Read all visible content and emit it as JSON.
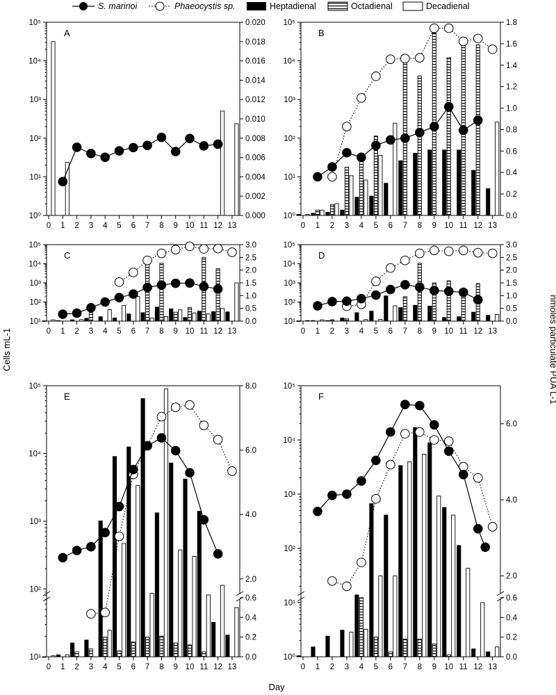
{
  "legend": {
    "s_marinoi": "S. marinoi",
    "phaeocystis": "Phaeocystis sp.",
    "heptadienal": "Heptadienal",
    "octadienal": "Octadienal",
    "decadienal": "Decadienal"
  },
  "axis_titles": {
    "x": "Day",
    "y_left": "Cells mL-1",
    "y_right": "nmoles particulate PUA L-1"
  },
  "colors": {
    "ink": "#000000",
    "paper": "#ffffff"
  },
  "chart_data": [
    {
      "panel": "A",
      "type": "bar+line",
      "ylim_left": [
        1,
        100000
      ],
      "y_scale_left": "log",
      "ylim_right": [
        0,
        0.02
      ],
      "right_ticks": [
        "0.000",
        "0.002",
        "0.004",
        "0.006",
        "0.008",
        "0.010",
        "0.012",
        "0.014",
        "0.016",
        "0.018",
        "0.020"
      ],
      "left_ticks": [
        "10^0",
        "10^1",
        "10^2",
        "10^3",
        "10^4",
        "10^5"
      ],
      "x_ticks": [
        0,
        1,
        2,
        3,
        4,
        5,
        6,
        7,
        8,
        9,
        10,
        11,
        12,
        13
      ],
      "s_marinoi": [
        [
          1,
          7.5
        ],
        [
          2,
          58
        ],
        [
          3,
          40
        ],
        [
          4,
          32
        ],
        [
          5,
          47
        ],
        [
          6,
          57
        ],
        [
          7,
          65
        ],
        [
          8,
          105
        ],
        [
          9,
          45
        ],
        [
          10,
          98
        ],
        [
          11,
          63
        ],
        [
          12,
          70
        ]
      ],
      "phaeocystis": [],
      "heptadienal": [],
      "octadienal": [],
      "decadienal": [
        [
          0,
          0.018
        ],
        [
          1,
          0.0055
        ],
        [
          12,
          0.0108
        ],
        [
          13,
          0.0095
        ]
      ]
    },
    {
      "panel": "B",
      "type": "bar+line",
      "ylim_left": [
        1,
        100000
      ],
      "y_scale_left": "log",
      "ylim_right": [
        0,
        1.8
      ],
      "right_ticks": [
        "0.0",
        "0.2",
        "0.4",
        "0.6",
        "0.8",
        "1.0",
        "1.2",
        "1.4",
        "1.6",
        "1.8"
      ],
      "left_ticks": [
        "10^0",
        "10^1",
        "10^2",
        "10^3",
        "10^4",
        "10^5"
      ],
      "x_ticks": [
        0,
        1,
        2,
        3,
        4,
        5,
        6,
        7,
        8,
        9,
        10,
        11,
        12,
        13
      ],
      "s_marinoi": [
        [
          1,
          10
        ],
        [
          2,
          18
        ],
        [
          3,
          42
        ],
        [
          4,
          32
        ],
        [
          5,
          65
        ],
        [
          6,
          90
        ],
        [
          7,
          100
        ],
        [
          8,
          140
        ],
        [
          9,
          200
        ],
        [
          10,
          650
        ],
        [
          11,
          160
        ],
        [
          12,
          290
        ]
      ],
      "phaeocystis": [
        [
          2,
          10
        ],
        [
          3,
          200
        ],
        [
          4,
          1100
        ],
        [
          5,
          4000
        ],
        [
          6,
          11000
        ],
        [
          7,
          11500
        ],
        [
          8,
          12000
        ],
        [
          9,
          70000
        ],
        [
          10,
          70000
        ],
        [
          11,
          32000
        ],
        [
          12,
          38000
        ],
        [
          13,
          20000
        ]
      ],
      "heptadienal": [
        [
          0,
          0.01
        ],
        [
          1,
          0.02
        ],
        [
          2,
          0.03
        ],
        [
          3,
          0.05
        ],
        [
          4,
          0.17
        ],
        [
          5,
          0.18
        ],
        [
          6,
          0.3
        ],
        [
          7,
          0.51
        ],
        [
          8,
          0.58
        ],
        [
          9,
          0.61
        ],
        [
          10,
          0.61
        ],
        [
          11,
          0.61
        ],
        [
          12,
          0.42
        ],
        [
          13,
          0.25
        ]
      ],
      "octadienal": [
        [
          1,
          0.05
        ],
        [
          2,
          0.1
        ],
        [
          3,
          0.45
        ],
        [
          4,
          0.55
        ],
        [
          5,
          0.74
        ],
        [
          7,
          1.5
        ],
        [
          8,
          1.3
        ],
        [
          9,
          1.7
        ],
        [
          10,
          1.47
        ],
        [
          11,
          1.62
        ],
        [
          12,
          1.59
        ]
      ],
      "decadienal": [
        [
          0,
          0.01
        ],
        [
          1,
          0.05
        ],
        [
          2,
          0.11
        ],
        [
          3,
          0.37
        ],
        [
          4,
          0.33
        ],
        [
          5,
          0.56
        ],
        [
          6,
          0.86
        ],
        [
          13,
          0.87
        ]
      ]
    },
    {
      "panel": "C",
      "type": "bar+line",
      "ylim_left": [
        10,
        100000
      ],
      "y_scale_left": "log",
      "ylim_right": [
        0,
        3.0
      ],
      "right_ticks": [
        "0.0",
        "0.5",
        "1.0",
        "1.5",
        "2.0",
        "2.5",
        "3.0"
      ],
      "left_ticks": [
        "10^1",
        "10^2",
        "10^3",
        "10^4",
        "10^5"
      ],
      "x_ticks": [
        0,
        1,
        2,
        3,
        4,
        5,
        6,
        7,
        8,
        9,
        10,
        11,
        12,
        13
      ],
      "s_marinoi": [
        [
          1,
          23
        ],
        [
          2,
          26
        ],
        [
          3,
          50
        ],
        [
          4,
          100
        ],
        [
          5,
          170
        ],
        [
          6,
          260
        ],
        [
          7,
          580
        ],
        [
          8,
          770
        ],
        [
          9,
          950
        ],
        [
          10,
          980
        ],
        [
          11,
          650
        ],
        [
          12,
          480
        ]
      ],
      "phaeocystis": [
        [
          5,
          1100
        ],
        [
          6,
          3500
        ],
        [
          7,
          15000
        ],
        [
          8,
          35000
        ],
        [
          9,
          55000
        ],
        [
          10,
          82000
        ],
        [
          11,
          60000
        ],
        [
          12,
          62000
        ],
        [
          13,
          40000
        ]
      ],
      "heptadienal": [
        [
          0,
          0.01
        ],
        [
          1,
          0.02
        ],
        [
          2,
          0.05
        ],
        [
          3,
          0.11
        ],
        [
          4,
          0.17
        ],
        [
          5,
          0.12
        ],
        [
          6,
          0.28
        ],
        [
          7,
          0.33
        ],
        [
          8,
          0.55
        ],
        [
          9,
          0.48
        ],
        [
          10,
          0.14
        ],
        [
          11,
          0.39
        ],
        [
          12,
          0.37
        ],
        [
          13,
          0.36
        ]
      ],
      "octadienal": [
        [
          3,
          0.33
        ],
        [
          7,
          2.3
        ],
        [
          8,
          2.27
        ],
        [
          9,
          0.35
        ],
        [
          10,
          0.53
        ],
        [
          11,
          2.5
        ],
        [
          12,
          2.06
        ]
      ],
      "decadienal": [
        [
          0,
          0.05
        ],
        [
          2,
          0.06
        ],
        [
          4,
          0.45
        ],
        [
          5,
          0.61
        ],
        [
          6,
          0.97
        ],
        [
          7,
          0.12
        ],
        [
          8,
          0.18
        ],
        [
          9,
          0.44
        ],
        [
          10,
          0.32
        ],
        [
          11,
          0.28
        ],
        [
          12,
          0.5
        ],
        [
          13,
          1.5
        ]
      ]
    },
    {
      "panel": "D",
      "type": "bar+line",
      "ylim_left": [
        10,
        100000
      ],
      "y_scale_left": "log",
      "ylim_right": [
        0,
        3.0
      ],
      "right_ticks": [
        "0.0",
        "0.5",
        "1.0",
        "1.5",
        "2.0",
        "2.5",
        "3.0"
      ],
      "left_ticks": [
        "10^1",
        "10^2",
        "10^3",
        "10^4",
        "10^5"
      ],
      "x_ticks": [
        0,
        1,
        2,
        3,
        4,
        5,
        6,
        7,
        8,
        9,
        10,
        11,
        12,
        13
      ],
      "s_marinoi": [
        [
          1,
          63
        ],
        [
          2,
          105
        ],
        [
          3,
          110
        ],
        [
          4,
          150
        ],
        [
          5,
          230
        ],
        [
          6,
          450
        ],
        [
          7,
          800
        ],
        [
          8,
          600
        ],
        [
          9,
          400
        ],
        [
          10,
          360
        ],
        [
          11,
          320
        ],
        [
          12,
          130
        ]
      ],
      "phaeocystis": [
        [
          3,
          60
        ],
        [
          4,
          75
        ],
        [
          5,
          1200
        ],
        [
          6,
          6000
        ],
        [
          7,
          15000
        ],
        [
          8,
          35000
        ],
        [
          9,
          50000
        ],
        [
          10,
          45000
        ],
        [
          11,
          50000
        ],
        [
          12,
          38000
        ],
        [
          13,
          35000
        ]
      ],
      "heptadienal": [
        [
          0,
          0.01
        ],
        [
          1,
          0.02
        ],
        [
          2,
          0.02
        ],
        [
          3,
          0.12
        ],
        [
          4,
          0.33
        ],
        [
          5,
          0.39
        ],
        [
          6,
          0.99
        ],
        [
          7,
          0.53
        ],
        [
          8,
          0.62
        ],
        [
          9,
          0.59
        ],
        [
          10,
          0.14
        ],
        [
          11,
          0.17
        ],
        [
          12,
          0.35
        ],
        [
          13,
          0.23
        ]
      ],
      "octadienal": [
        [
          2,
          0.05
        ],
        [
          3,
          0.09
        ],
        [
          7,
          0.96
        ],
        [
          8,
          2.27
        ],
        [
          9,
          1.5
        ],
        [
          10,
          1.58
        ],
        [
          11,
          1.24
        ],
        [
          12,
          1.47
        ]
      ],
      "decadienal": [
        [
          0,
          0.02
        ],
        [
          1,
          0.05
        ],
        [
          4,
          0.06
        ],
        [
          5,
          0.07
        ],
        [
          6,
          0.6
        ],
        [
          13,
          0.26
        ]
      ]
    },
    {
      "panel": "E",
      "type": "bar+line",
      "ylim_left": [
        10,
        100000
      ],
      "y_scale_left": "log",
      "y_break": true,
      "ylim_right_lower": [
        0,
        0.6
      ],
      "ylim_right_upper": [
        1.5,
        8.0
      ],
      "right_ticks": [
        "0.0",
        "0.2",
        "0.4",
        "0.6",
        "2.0",
        "4.0",
        "6.0",
        "8.0"
      ],
      "left_ticks": [
        "10^1",
        "10^2",
        "10^3",
        "10^4",
        "10^5"
      ],
      "x_ticks": [
        0,
        1,
        2,
        3,
        4,
        5,
        6,
        7,
        8,
        9,
        10,
        11,
        12,
        13
      ],
      "s_marinoi": [
        [
          1,
          290
        ],
        [
          2,
          370
        ],
        [
          3,
          420
        ],
        [
          4,
          680
        ],
        [
          5,
          1650
        ],
        [
          6,
          5800
        ],
        [
          7,
          13000
        ],
        [
          8,
          17000
        ],
        [
          9,
          11000
        ],
        [
          10,
          5200
        ],
        [
          11,
          1050
        ],
        [
          12,
          330
        ]
      ],
      "phaeocystis": [
        [
          3,
          43
        ],
        [
          4,
          45
        ],
        [
          5,
          600
        ],
        [
          6,
          4900
        ],
        [
          7,
          13000
        ],
        [
          8,
          35000
        ],
        [
          9,
          48000
        ],
        [
          10,
          52000
        ],
        [
          11,
          26000
        ],
        [
          12,
          16000
        ],
        [
          13,
          5500
        ]
      ],
      "heptadienal": [
        [
          0,
          0.0
        ],
        [
          1,
          0.02
        ],
        [
          2,
          0.14
        ],
        [
          3,
          0.17
        ],
        [
          4,
          3.8
        ],
        [
          5,
          5.8
        ],
        [
          6,
          6.1
        ],
        [
          7,
          7.6
        ],
        [
          8,
          4.05
        ],
        [
          9,
          5.6
        ],
        [
          10,
          5.1
        ],
        [
          11,
          4.1
        ],
        [
          12,
          0.35
        ],
        [
          13,
          0.22
        ]
      ],
      "octadienal": [
        [
          2,
          0.05
        ],
        [
          3,
          0.08
        ],
        [
          4,
          0.2
        ],
        [
          5,
          0.06
        ],
        [
          6,
          0.15
        ],
        [
          7,
          0.2
        ],
        [
          8,
          0.21
        ],
        [
          9,
          0.14
        ],
        [
          10,
          0.12
        ],
        [
          11,
          0.05
        ]
      ],
      "decadienal": [
        [
          0,
          0.01
        ],
        [
          1,
          0.02
        ],
        [
          4,
          0.27
        ],
        [
          5,
          3.1
        ],
        [
          6,
          4.9
        ],
        [
          7,
          1.55
        ],
        [
          8,
          7.9
        ],
        [
          9,
          2.9
        ],
        [
          10,
          2.7
        ],
        [
          11,
          1.5
        ],
        [
          12,
          1.8
        ],
        [
          13,
          0.5
        ]
      ]
    },
    {
      "panel": "F",
      "type": "bar+line",
      "ylim_left": [
        1,
        100000
      ],
      "y_scale_left": "log",
      "y_break": true,
      "ylim_right_lower": [
        0,
        0.6
      ],
      "ylim_right_upper": [
        1.5,
        7.0
      ],
      "right_ticks": [
        "0.0",
        "0.2",
        "0.4",
        "0.6",
        "2.0",
        "4.0",
        "6.0"
      ],
      "left_ticks": [
        "10^0",
        "10^1",
        "10^2",
        "10^3",
        "10^4",
        "10^5"
      ],
      "x_ticks": [
        0,
        1,
        2,
        3,
        4,
        5,
        6,
        7,
        8,
        9,
        10,
        11,
        12,
        13
      ],
      "s_marinoi": [
        [
          1,
          480
        ],
        [
          2,
          950
        ],
        [
          3,
          1000
        ],
        [
          4,
          1750
        ],
        [
          5,
          4200
        ],
        [
          6,
          14000
        ],
        [
          7,
          45000
        ],
        [
          8,
          43000
        ],
        [
          9,
          19000
        ],
        [
          10,
          6200
        ],
        [
          11,
          2300
        ],
        [
          12,
          230
        ],
        [
          12.5,
          105
        ]
      ],
      "phaeocystis": [
        [
          2,
          25
        ],
        [
          3,
          20
        ],
        [
          4,
          55
        ],
        [
          5,
          820
        ],
        [
          6,
          3500
        ],
        [
          7,
          13000
        ],
        [
          8,
          14000
        ],
        [
          9,
          10000
        ],
        [
          10,
          9500
        ],
        [
          11,
          3200
        ],
        [
          12,
          2000
        ],
        [
          13,
          250
        ]
      ],
      "heptadienal": [
        [
          0,
          0.01
        ],
        [
          1,
          0.1
        ],
        [
          2,
          0.21
        ],
        [
          3,
          0.27
        ],
        [
          4,
          0.65
        ],
        [
          5,
          3.9
        ],
        [
          6,
          3.6
        ],
        [
          7,
          4.9
        ],
        [
          8,
          5.9
        ],
        [
          9,
          5.5
        ],
        [
          10,
          3.8
        ],
        [
          11,
          2.8
        ],
        [
          12,
          0.08
        ],
        [
          13,
          0.05
        ]
      ],
      "octadienal": [
        [
          4,
          0.6
        ],
        [
          5,
          0.2
        ],
        [
          6,
          0.05
        ],
        [
          7,
          0.18
        ],
        [
          8,
          0.18
        ],
        [
          9,
          0.13
        ],
        [
          10,
          0.02
        ]
      ],
      "decadienal": [
        [
          3,
          0.25
        ],
        [
          4,
          0.28
        ],
        [
          5,
          2.0
        ],
        [
          6,
          2.0
        ],
        [
          7,
          5.0
        ],
        [
          8,
          5.2
        ],
        [
          9,
          4.1
        ],
        [
          10,
          3.6
        ],
        [
          11,
          2.2
        ],
        [
          12,
          0.55
        ],
        [
          13,
          0.1
        ]
      ]
    }
  ]
}
